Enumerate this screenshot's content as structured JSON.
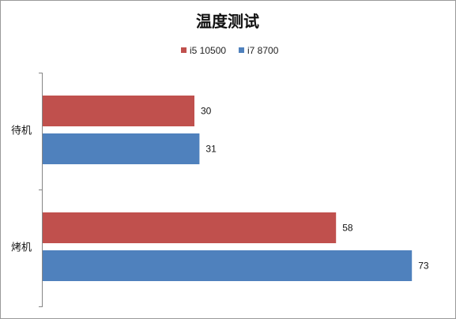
{
  "chart_data": {
    "type": "bar",
    "orientation": "horizontal",
    "title": "温度测试",
    "categories": [
      "待机",
      "烤机"
    ],
    "series": [
      {
        "name": "i5 10500",
        "color": "#c0504d",
        "values": [
          30,
          58
        ]
      },
      {
        "name": "i7 8700",
        "color": "#4f81bd",
        "values": [
          31,
          73
        ]
      }
    ],
    "xlim": [
      0,
      80
    ],
    "grid": false,
    "legend": "top",
    "xlabel": "",
    "ylabel": ""
  }
}
